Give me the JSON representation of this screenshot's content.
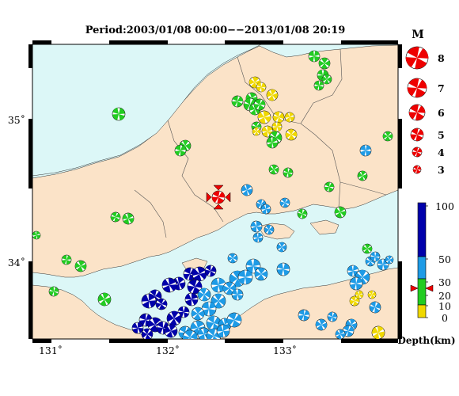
{
  "title": "Period:2003/01/08 00:00−−2013/01/08 20:19",
  "x_ticks": [
    "131˚",
    "132˚",
    "133˚"
  ],
  "y_ticks": [
    "35˚",
    "34˚"
  ],
  "magnitude_legend": {
    "header": "M",
    "levels": [
      "8",
      "7",
      "6",
      "5",
      "4",
      "3"
    ]
  },
  "depth_legend": {
    "ticks": [
      "100",
      "50",
      "30",
      "20",
      "10",
      "0"
    ],
    "unit_label": "Depth(km)",
    "colors": {
      "0-10": "#f0d800",
      "10-30": "#22cc22",
      "30-50": "#1e9be6",
      "50-100": "#0000aa"
    },
    "marker_depth_km": 12
  },
  "colors": {
    "sea": "#dcf7f7",
    "land": "#fbe3c8",
    "focal_red": "#ee0000"
  },
  "events_summary": {
    "featured_event": "red focal mechanism with marker near 132.4E 34.45N"
  }
}
